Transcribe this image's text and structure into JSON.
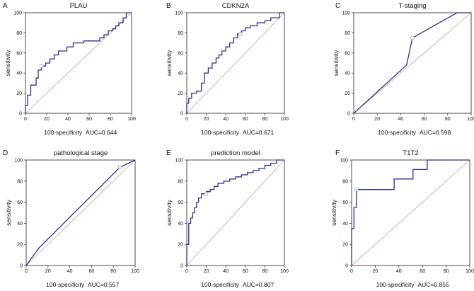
{
  "colors": {
    "roc": "#2b2f8f",
    "diagonal": "#d49a9a",
    "axis": "#222222",
    "marker": "#9aa0c8"
  },
  "chart_data": [
    {
      "type": "line",
      "panel": "A",
      "title": "PLAU",
      "xlabel": "100-specificity",
      "ylabel": "sensitivity",
      "auc": "AUC=0.644",
      "xlim": [
        0,
        100
      ],
      "ylim": [
        0,
        100
      ],
      "xticks": [
        0,
        20,
        40,
        60,
        80,
        100
      ],
      "yticks": [
        0,
        20,
        40,
        60,
        80,
        100
      ],
      "marker": [
        15,
        47
      ],
      "series": [
        {
          "name": "ROC",
          "x": [
            0,
            0,
            2,
            2,
            5,
            5,
            10,
            10,
            12,
            12,
            15,
            15,
            19,
            19,
            23,
            23,
            27,
            27,
            31,
            31,
            39,
            39,
            45,
            45,
            55,
            55,
            70,
            70,
            74,
            74,
            78,
            78,
            82,
            82,
            85,
            85,
            88,
            88,
            92,
            92,
            95,
            95,
            100,
            100
          ],
          "y": [
            0,
            8,
            8,
            18,
            18,
            28,
            28,
            35,
            35,
            43,
            43,
            47,
            47,
            50,
            50,
            54,
            54,
            58,
            58,
            62,
            62,
            66,
            66,
            70,
            70,
            72,
            72,
            75,
            75,
            78,
            78,
            82,
            82,
            84,
            84,
            87,
            87,
            90,
            90,
            95,
            95,
            100,
            100,
            100
          ]
        }
      ]
    },
    {
      "type": "line",
      "panel": "B",
      "title": "CDKN2A",
      "xlabel": "100-specificity",
      "ylabel": "sensitivity",
      "auc": "AUC=0.671",
      "xlim": [
        0,
        100
      ],
      "ylim": [
        0,
        100
      ],
      "xticks": [
        0,
        20,
        40,
        60,
        80,
        100
      ],
      "yticks": [
        0,
        20,
        40,
        60,
        80,
        100
      ],
      "marker": [
        55,
        79
      ],
      "series": [
        {
          "name": "ROC",
          "x": [
            0,
            0,
            2,
            2,
            5,
            5,
            10,
            10,
            15,
            15,
            18,
            18,
            22,
            22,
            26,
            26,
            30,
            30,
            33,
            33,
            36,
            36,
            40,
            40,
            44,
            44,
            48,
            48,
            52,
            52,
            56,
            56,
            60,
            60,
            65,
            65,
            72,
            72,
            80,
            80,
            86,
            86,
            95,
            95,
            100
          ],
          "y": [
            0,
            10,
            10,
            15,
            15,
            20,
            20,
            22,
            22,
            30,
            30,
            40,
            40,
            45,
            45,
            50,
            50,
            55,
            55,
            58,
            58,
            62,
            62,
            66,
            66,
            70,
            70,
            75,
            75,
            79,
            79,
            82,
            82,
            85,
            85,
            87,
            87,
            90,
            90,
            92,
            92,
            95,
            95,
            100,
            100
          ]
        }
      ]
    },
    {
      "type": "line",
      "panel": "C",
      "title": "T-staging",
      "xlabel": "100-specificity",
      "ylabel": "sensitivity",
      "auc": "AUC=0.598",
      "xlim": [
        0,
        100
      ],
      "ylim": [
        0,
        100
      ],
      "xticks": [
        0,
        20,
        40,
        60,
        80,
        100
      ],
      "yticks": [
        0,
        20,
        40,
        60,
        80,
        100
      ],
      "marker": [
        50,
        75
      ],
      "series": [
        {
          "name": "ROC",
          "x": [
            0,
            45,
            50,
            88,
            100
          ],
          "y": [
            0,
            48,
            75,
            100,
            100
          ]
        }
      ]
    },
    {
      "type": "line",
      "panel": "D",
      "title": "pathological stage",
      "xlabel": "100-specificity",
      "ylabel": "sensitivity",
      "auc": "AUC=0.557",
      "xlim": [
        0,
        100
      ],
      "ylim": [
        0,
        100
      ],
      "xticks": [
        0,
        20,
        40,
        60,
        80,
        100
      ],
      "yticks": [
        0,
        20,
        40,
        60,
        80,
        100
      ],
      "marker": [
        86,
        93
      ],
      "series": [
        {
          "name": "ROC",
          "x": [
            0,
            12,
            86,
            100
          ],
          "y": [
            0,
            17,
            93,
            100
          ]
        }
      ]
    },
    {
      "type": "line",
      "panel": "E",
      "title": "prediction model",
      "xlabel": "100-specificity",
      "ylabel": "sensitivity",
      "auc": "AUC=0.807",
      "xlim": [
        0,
        100
      ],
      "ylim": [
        0,
        100
      ],
      "xticks": [
        0,
        20,
        40,
        60,
        80,
        100
      ],
      "yticks": [
        0,
        20,
        40,
        60,
        80,
        100
      ],
      "marker": [
        20,
        68
      ],
      "series": [
        {
          "name": "ROC",
          "x": [
            0,
            0,
            2,
            2,
            4,
            4,
            6,
            6,
            8,
            8,
            10,
            10,
            12,
            12,
            15,
            15,
            20,
            20,
            24,
            24,
            28,
            28,
            32,
            32,
            38,
            38,
            44,
            44,
            50,
            50,
            56,
            56,
            62,
            62,
            68,
            68,
            74,
            74,
            80,
            80,
            86,
            86,
            92,
            92,
            100
          ],
          "y": [
            0,
            20,
            20,
            40,
            40,
            45,
            45,
            50,
            50,
            55,
            55,
            60,
            60,
            64,
            64,
            68,
            68,
            70,
            70,
            72,
            72,
            75,
            75,
            78,
            78,
            80,
            80,
            82,
            82,
            84,
            84,
            86,
            86,
            88,
            88,
            90,
            90,
            92,
            92,
            95,
            95,
            97,
            97,
            100,
            100
          ]
        }
      ]
    },
    {
      "type": "line",
      "panel": "F",
      "title": "T1T2",
      "xlabel": "100-specificity",
      "ylabel": "sensitivity",
      "auc": "AUC=0.855",
      "xlim": [
        0,
        100
      ],
      "ylim": [
        0,
        100
      ],
      "xticks": [
        0,
        20,
        40,
        60,
        80,
        100
      ],
      "yticks": [
        0,
        20,
        40,
        60,
        80,
        100
      ],
      "marker": [
        4,
        72
      ],
      "series": [
        {
          "name": "ROC",
          "x": [
            0,
            0,
            2,
            2,
            4,
            4,
            36,
            36,
            52,
            52,
            64,
            64,
            100
          ],
          "y": [
            0,
            35,
            35,
            55,
            55,
            72,
            72,
            82,
            82,
            91,
            91,
            100,
            100
          ]
        }
      ]
    }
  ]
}
